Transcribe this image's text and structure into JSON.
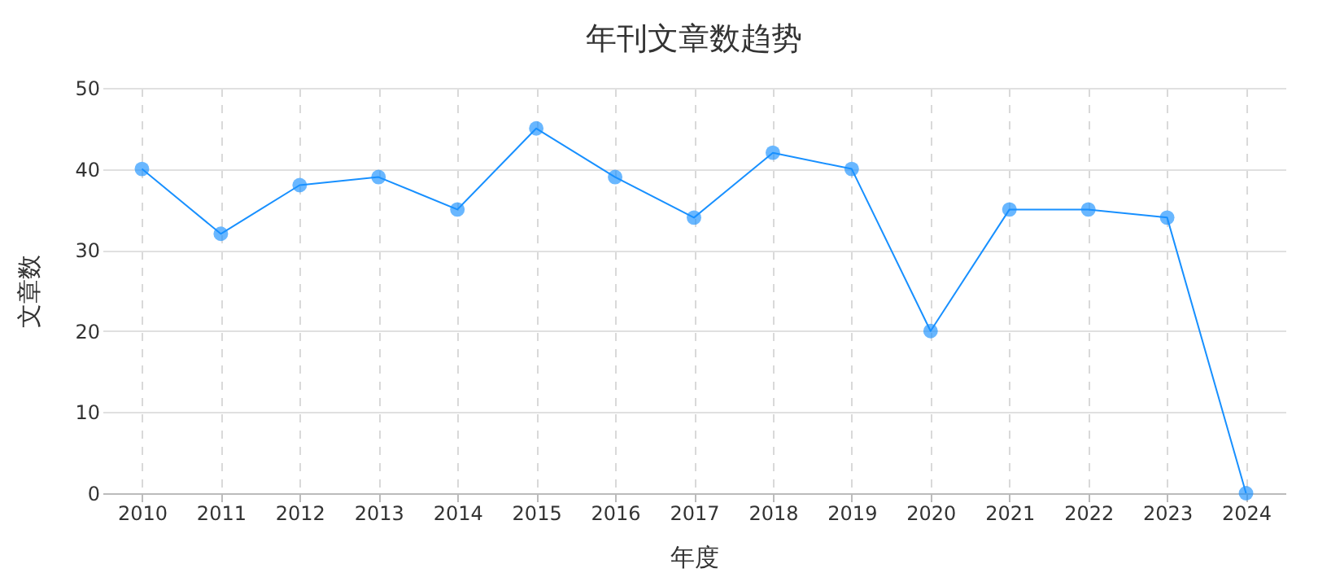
{
  "chart_data": {
    "type": "line",
    "title": "年刊文章数趋势",
    "xlabel": "年度",
    "ylabel": "文章数",
    "categories": [
      "2010",
      "2011",
      "2012",
      "2013",
      "2014",
      "2015",
      "2016",
      "2017",
      "2018",
      "2019",
      "2020",
      "2021",
      "2022",
      "2023",
      "2024"
    ],
    "series": [
      {
        "color": "#1890ff",
        "values": [
          40,
          32,
          38,
          39,
          35,
          45,
          39,
          34,
          42,
          40,
          20,
          35,
          35,
          34,
          0
        ]
      }
    ],
    "ylim": [
      0,
      50
    ],
    "yticks": [
      0,
      10,
      20,
      30,
      40,
      50
    ],
    "grid": true,
    "marker": "circle",
    "line_style": "solid"
  }
}
